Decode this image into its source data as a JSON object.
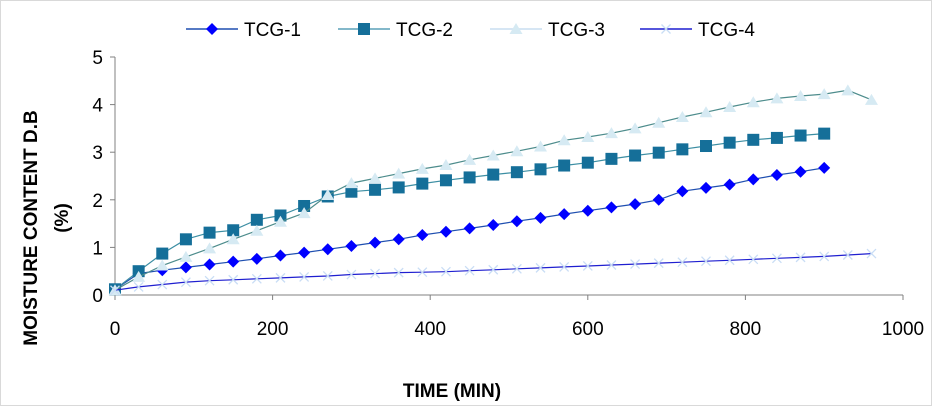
{
  "chart_data": {
    "type": "line",
    "title": "",
    "xlabel": "TIME (MIN)",
    "ylabel_line1": "MOISTURE CONTENT D.B",
    "ylabel_line2": "(%)",
    "xlim": [
      0,
      1000
    ],
    "ylim": [
      0,
      5
    ],
    "xticks": [
      0,
      200,
      400,
      600,
      800,
      1000
    ],
    "yticks": [
      0,
      1,
      2,
      3,
      4,
      5
    ],
    "grid": false,
    "legend_position": "top",
    "series": [
      {
        "name": "TCG-1",
        "color": "#0000FF",
        "marker": "diamond",
        "x": [
          0,
          30,
          60,
          90,
          120,
          150,
          180,
          210,
          240,
          270,
          300,
          330,
          360,
          390,
          420,
          450,
          480,
          510,
          540,
          570,
          600,
          630,
          660,
          690,
          720,
          750,
          780,
          810,
          840,
          870,
          900
        ],
        "y": [
          0.12,
          0.45,
          0.52,
          0.58,
          0.64,
          0.7,
          0.76,
          0.83,
          0.89,
          0.96,
          1.03,
          1.1,
          1.17,
          1.26,
          1.33,
          1.4,
          1.47,
          1.55,
          1.62,
          1.7,
          1.77,
          1.84,
          1.91,
          2.0,
          2.18,
          2.25,
          2.32,
          2.43,
          2.52,
          2.59,
          2.67
        ]
      },
      {
        "name": "TCG-2",
        "color": "#156F99",
        "marker": "square",
        "x": [
          0,
          30,
          60,
          90,
          120,
          150,
          180,
          210,
          240,
          270,
          300,
          330,
          360,
          390,
          420,
          450,
          480,
          510,
          540,
          570,
          600,
          630,
          660,
          690,
          720,
          750,
          780,
          810,
          840,
          870,
          900
        ],
        "y": [
          0.12,
          0.5,
          0.87,
          1.17,
          1.31,
          1.36,
          1.58,
          1.67,
          1.87,
          2.07,
          2.17,
          2.21,
          2.26,
          2.34,
          2.41,
          2.47,
          2.53,
          2.58,
          2.64,
          2.72,
          2.78,
          2.86,
          2.93,
          2.99,
          3.06,
          3.13,
          3.2,
          3.26,
          3.3,
          3.35,
          3.39
        ]
      },
      {
        "name": "TCG-3",
        "color": "#D6EAF3",
        "marker": "triangle",
        "x": [
          0,
          30,
          60,
          90,
          120,
          150,
          180,
          210,
          240,
          270,
          300,
          330,
          360,
          390,
          420,
          450,
          480,
          510,
          540,
          570,
          600,
          630,
          660,
          690,
          720,
          750,
          780,
          810,
          840,
          870,
          900,
          930,
          960
        ],
        "y": [
          0.1,
          0.38,
          0.62,
          0.8,
          0.98,
          1.17,
          1.35,
          1.54,
          1.72,
          2.1,
          2.35,
          2.45,
          2.55,
          2.65,
          2.73,
          2.84,
          2.93,
          3.02,
          3.12,
          3.25,
          3.32,
          3.4,
          3.5,
          3.62,
          3.74,
          3.84,
          3.95,
          4.05,
          4.13,
          4.18,
          4.22,
          4.3,
          4.1
        ]
      },
      {
        "name": "TCG-4",
        "color": "#1F1FD0",
        "marker": "x",
        "x": [
          0,
          30,
          60,
          90,
          120,
          150,
          180,
          210,
          240,
          270,
          300,
          330,
          360,
          390,
          420,
          450,
          480,
          510,
          540,
          570,
          600,
          630,
          660,
          690,
          720,
          750,
          780,
          810,
          840,
          870,
          900,
          930,
          960
        ],
        "y": [
          0.1,
          0.17,
          0.22,
          0.27,
          0.3,
          0.32,
          0.34,
          0.36,
          0.38,
          0.4,
          0.43,
          0.45,
          0.47,
          0.48,
          0.49,
          0.51,
          0.53,
          0.55,
          0.57,
          0.59,
          0.61,
          0.63,
          0.65,
          0.67,
          0.69,
          0.71,
          0.73,
          0.75,
          0.77,
          0.79,
          0.81,
          0.84,
          0.87
        ]
      }
    ]
  }
}
